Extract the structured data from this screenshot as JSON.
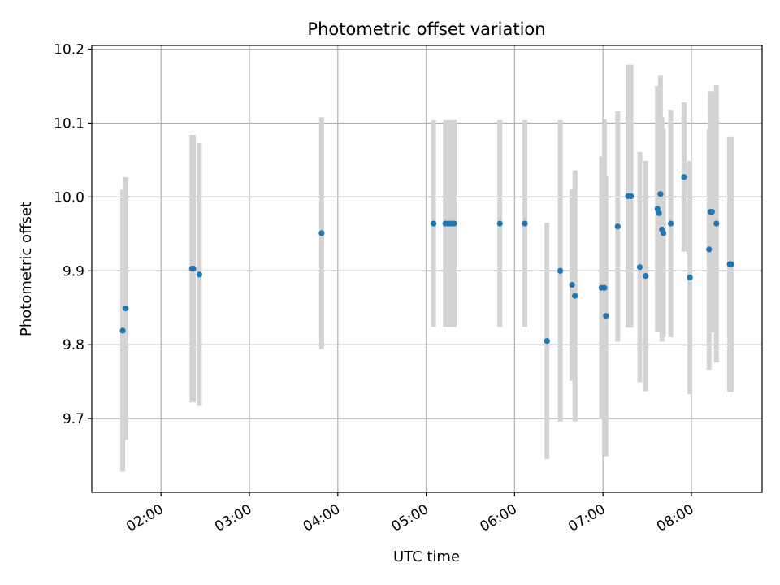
{
  "chart_data": {
    "type": "scatter",
    "title": "Photometric offset variation",
    "xlabel": "UTC time",
    "ylabel": "Photometric offset",
    "x_unit": "UTC",
    "xlim": [
      "01:13",
      "08:48"
    ],
    "ylim": [
      9.6,
      10.205
    ],
    "grid": true,
    "x_ticks": [
      {
        "time": "02:00",
        "label": "02:00"
      },
      {
        "time": "03:00",
        "label": "03:00"
      },
      {
        "time": "04:00",
        "label": "04:00"
      },
      {
        "time": "05:00",
        "label": "05:00"
      },
      {
        "time": "06:00",
        "label": "06:00"
      },
      {
        "time": "07:00",
        "label": "07:00"
      },
      {
        "time": "08:00",
        "label": "08:00"
      }
    ],
    "y_ticks": [
      {
        "value": 9.7,
        "label": "9.7"
      },
      {
        "value": 9.8,
        "label": "9.8"
      },
      {
        "value": 9.9,
        "label": "9.9"
      },
      {
        "value": 10.0,
        "label": "10.0"
      },
      {
        "value": 10.1,
        "label": "10.1"
      },
      {
        "value": 10.2,
        "label": "10.2"
      }
    ],
    "colors": {
      "points": "#1f77b4",
      "error_bars": "#d3d3d3",
      "grid": "#b0b0b0"
    },
    "series": [
      {
        "points": [
          {
            "x": "01:34",
            "y": 9.819,
            "err": 0.191
          },
          {
            "x": "01:36",
            "y": 9.849,
            "err": 0.178
          },
          {
            "x": "02:21",
            "y": 9.903,
            "err": 0.181
          },
          {
            "x": "02:22",
            "y": 9.903,
            "err": 0.181
          },
          {
            "x": "02:26",
            "y": 9.895,
            "err": 0.178
          },
          {
            "x": "03:49",
            "y": 9.951,
            "err": 0.157
          },
          {
            "x": "05:05",
            "y": 9.964,
            "err": 0.14
          },
          {
            "x": "05:13",
            "y": 9.964,
            "err": 0.14
          },
          {
            "x": "05:15",
            "y": 9.964,
            "err": 0.14
          },
          {
            "x": "05:17",
            "y": 9.964,
            "err": 0.14
          },
          {
            "x": "05:19",
            "y": 9.964,
            "err": 0.14
          },
          {
            "x": "05:50",
            "y": 9.964,
            "err": 0.14
          },
          {
            "x": "06:07",
            "y": 9.964,
            "err": 0.14
          },
          {
            "x": "06:22",
            "y": 9.805,
            "err": 0.16
          },
          {
            "x": "06:31",
            "y": 9.9,
            "err": 0.204
          },
          {
            "x": "06:39",
            "y": 9.881,
            "err": 0.13
          },
          {
            "x": "06:41",
            "y": 9.866,
            "err": 0.17
          },
          {
            "x": "06:59",
            "y": 9.877,
            "err": 0.178
          },
          {
            "x": "07:01",
            "y": 9.877,
            "err": 0.228
          },
          {
            "x": "07:02",
            "y": 9.839,
            "err": 0.19
          },
          {
            "x": "07:10",
            "y": 9.96,
            "err": 0.156
          },
          {
            "x": "07:17",
            "y": 10.001,
            "err": 0.178
          },
          {
            "x": "07:19",
            "y": 10.001,
            "err": 0.178
          },
          {
            "x": "07:25",
            "y": 9.905,
            "err": 0.156
          },
          {
            "x": "07:29",
            "y": 9.893,
            "err": 0.156
          },
          {
            "x": "07:37",
            "y": 9.984,
            "err": 0.166
          },
          {
            "x": "07:38",
            "y": 9.978,
            "err": 0.13
          },
          {
            "x": "07:39",
            "y": 10.004,
            "err": 0.161
          },
          {
            "x": "07:40",
            "y": 9.956,
            "err": 0.152
          },
          {
            "x": "07:41",
            "y": 9.951,
            "err": 0.141
          },
          {
            "x": "07:46",
            "y": 9.964,
            "err": 0.154
          },
          {
            "x": "07:55",
            "y": 10.027,
            "err": 0.101
          },
          {
            "x": "07:59",
            "y": 9.891,
            "err": 0.158
          },
          {
            "x": "08:12",
            "y": 9.929,
            "err": 0.163
          },
          {
            "x": "08:13",
            "y": 9.98,
            "err": 0.163
          },
          {
            "x": "08:14",
            "y": 9.98,
            "err": 0.163
          },
          {
            "x": "08:17",
            "y": 9.964,
            "err": 0.188
          },
          {
            "x": "08:26",
            "y": 9.909,
            "err": 0.173
          },
          {
            "x": "08:27",
            "y": 9.909,
            "err": 0.173
          }
        ]
      }
    ]
  }
}
